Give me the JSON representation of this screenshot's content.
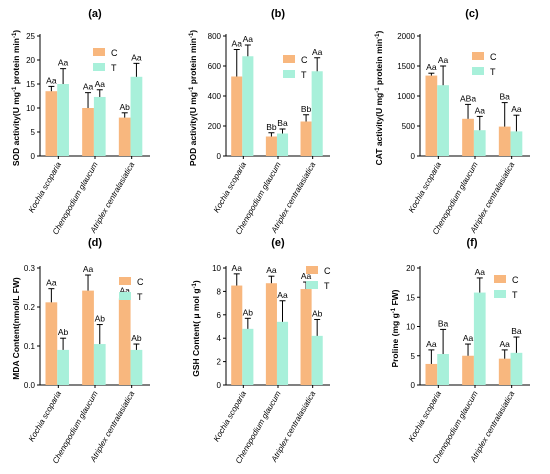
{
  "colors": {
    "C": "#f8b77e",
    "T": "#a8f0da"
  },
  "legend": [
    "C",
    "T"
  ],
  "chart_data": [
    {
      "type": "bar",
      "panel": "(a)",
      "ylabel_prefix": "SOD activity(U mg",
      "ylabel_sup": "-1",
      "ylabel_suffix": " protein min",
      "ylabel_sup2": "-1",
      "ylabel_close": ")",
      "ylim": [
        0,
        25
      ],
      "yticks": [
        "0",
        "5",
        "10",
        "15",
        "20",
        "25"
      ],
      "ytick_values": [
        0,
        5,
        10,
        15,
        20,
        25
      ],
      "categories": [
        "Kochia scoparia",
        "Chenopodium glaucum",
        "Atriplex centralasiatica"
      ],
      "series": [
        {
          "name": "C",
          "values": [
            13.5,
            10,
            8
          ],
          "errors": [
            1.0,
            3.2,
            1.0
          ],
          "labels": [
            "Aa",
            "Aa",
            "Ab"
          ]
        },
        {
          "name": "T",
          "values": [
            15,
            12.3,
            16.5
          ],
          "errors": [
            3.2,
            1.5,
            2.8
          ],
          "labels": [
            "Aa",
            "Aa",
            "Aa"
          ]
        }
      ],
      "legend_position": "top-right"
    },
    {
      "type": "bar",
      "panel": "(b)",
      "ylabel_prefix": "POD activity(U mg",
      "ylabel_sup": "-1",
      "ylabel_suffix": " protein min",
      "ylabel_sup2": "-1",
      "ylabel_close": ")",
      "ylim": [
        0,
        800
      ],
      "yticks": [
        "0",
        "200",
        "400",
        "600",
        "800"
      ],
      "ytick_values": [
        0,
        200,
        400,
        600,
        800
      ],
      "categories": [
        "Kochia scoparia",
        "Chenopodium glaucum",
        "Atriplex centralasiatica"
      ],
      "series": [
        {
          "name": "C",
          "values": [
            530,
            130,
            230
          ],
          "errors": [
            180,
            25,
            45
          ],
          "labels": [
            "Aa",
            "Bb",
            "Bb"
          ]
        },
        {
          "name": "T",
          "values": [
            665,
            150,
            565
          ],
          "errors": [
            75,
            30,
            90
          ],
          "labels": [
            "Aa",
            "Ba",
            "Aa"
          ]
        }
      ],
      "legend_position": "top-right"
    },
    {
      "type": "bar",
      "panel": "(c)",
      "ylabel_prefix": "CAT activity(U mg",
      "ylabel_sup": "-1",
      "ylabel_suffix": " protein min",
      "ylabel_sup2": "-1",
      "ylabel_close": ")",
      "ylim": [
        0,
        2000
      ],
      "yticks": [
        "0",
        "500",
        "1000",
        "1500",
        "2000"
      ],
      "ytick_values": [
        0,
        500,
        1000,
        1500,
        2000
      ],
      "categories": [
        "Kochia scoparia",
        "Chenopodium glaucum",
        "Atriplex centralasiatica"
      ],
      "series": [
        {
          "name": "C",
          "values": [
            1340,
            620,
            490
          ],
          "errors": [
            40,
            240,
            400
          ],
          "labels": [
            "Aa",
            "ABa",
            "Ba"
          ]
        },
        {
          "name": "T",
          "values": [
            1180,
            430,
            410
          ],
          "errors": [
            320,
            230,
            270
          ],
          "labels": [
            "Aa",
            "Aa",
            "Aa"
          ]
        }
      ],
      "legend_position": "top-right"
    },
    {
      "type": "bar",
      "panel": "(d)",
      "ylabel_prefix": "MDA Content(nmol/L FW)",
      "ylabel_sup": "",
      "ylabel_suffix": "",
      "ylabel_sup2": "",
      "ylabel_close": "",
      "ylim": [
        0,
        0.3
      ],
      "yticks": [
        "0.0",
        "0.1",
        "0.2",
        "0.3"
      ],
      "ytick_values": [
        0,
        0.1,
        0.2,
        0.3
      ],
      "categories": [
        "Kochia scoparia",
        "Chenopodium glaucum",
        "Atriplex centralasiatica"
      ],
      "series": [
        {
          "name": "C",
          "values": [
            0.212,
            0.242,
            0.222
          ],
          "errors": [
            0.035,
            0.04,
            0.005
          ],
          "labels": [
            "Aa",
            "Aa",
            "Aa"
          ]
        },
        {
          "name": "T",
          "values": [
            0.09,
            0.105,
            0.09
          ],
          "errors": [
            0.03,
            0.05,
            0.015
          ],
          "labels": [
            "Ab",
            "Ab",
            "Ab"
          ]
        }
      ],
      "legend_position": "top-right"
    },
    {
      "type": "bar",
      "panel": "(e)",
      "ylabel_prefix": "GSH Content( μ mol g",
      "ylabel_sup": "-1",
      "ylabel_suffix": ")",
      "ylabel_sup2": "",
      "ylabel_close": "",
      "ylim": [
        0,
        10
      ],
      "yticks": [
        "0",
        "2",
        "4",
        "6",
        "8",
        "10"
      ],
      "ytick_values": [
        0,
        2,
        4,
        6,
        8,
        10
      ],
      "categories": [
        "Kochia scoparia",
        "Chenopodium glaucum",
        "Atriplex centralasiatica"
      ],
      "series": [
        {
          "name": "C",
          "values": [
            8.5,
            8.7,
            8.2
          ],
          "errors": [
            1.0,
            0.6,
            0.6
          ],
          "labels": [
            "Aa",
            "Aa",
            "Aa"
          ]
        },
        {
          "name": "T",
          "values": [
            4.8,
            5.4,
            4.2
          ],
          "errors": [
            0.9,
            1.8,
            1.4
          ],
          "labels": [
            "Ab",
            "Aa",
            "Ab"
          ]
        }
      ],
      "legend_position": "top-right"
    },
    {
      "type": "bar",
      "panel": "(f)",
      "ylabel_prefix": "Proline (mg g",
      "ylabel_sup": "-1",
      "ylabel_suffix": " FW)",
      "ylabel_sup2": "",
      "ylabel_close": "",
      "ylim": [
        0,
        20
      ],
      "yticks": [
        "0",
        "5",
        "10",
        "15",
        "20"
      ],
      "ytick_values": [
        0,
        5,
        10,
        15,
        20
      ],
      "categories": [
        "Kochia scoparia",
        "Chenopodium glaucum",
        "Atriplex centralasiatica"
      ],
      "series": [
        {
          "name": "C",
          "values": [
            3.6,
            5.0,
            4.5
          ],
          "errors": [
            2.4,
            2.0,
            1.5
          ],
          "labels": [
            "Aa",
            "Aa",
            "Aa"
          ]
        },
        {
          "name": "T",
          "values": [
            5.3,
            15.8,
            5.5
          ],
          "errors": [
            4.2,
            2.5,
            2.7
          ],
          "labels": [
            "Ba",
            "Aa",
            "Ba"
          ]
        }
      ],
      "legend_position": "top-right"
    }
  ]
}
